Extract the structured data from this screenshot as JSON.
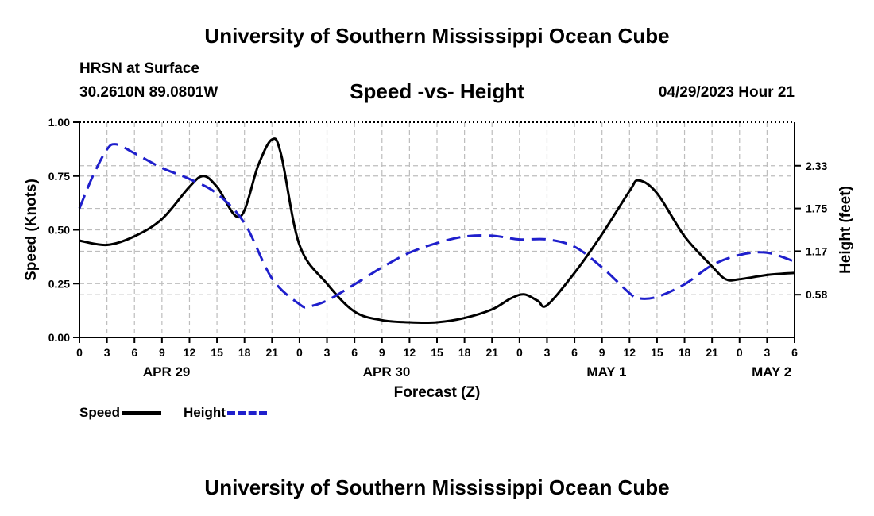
{
  "header": {
    "title": "University of Southern Mississippi Ocean Cube",
    "station": "HRSN at Surface",
    "coords": "30.2610N  89.0801W",
    "subtitle": "Speed -vs- Height",
    "datetime": "04/29/2023 Hour 21",
    "footer_title": "University of Southern Mississippi Ocean Cube"
  },
  "legend": {
    "speed_label": "Speed",
    "height_label": "Height"
  },
  "colors": {
    "speed": "#000000",
    "height": "#1f1fcc",
    "grid": "#bdbdbd"
  },
  "chart_data": {
    "type": "line",
    "title": "Speed -vs- Height",
    "xlabel": "Forecast (Z)",
    "ylabel_left": "Speed (Knots)",
    "ylabel_right": "Height (feet)",
    "x_hours": [
      0,
      78
    ],
    "x_ticks": [
      "0",
      "3",
      "6",
      "9",
      "12",
      "15",
      "18",
      "21",
      "0",
      "3",
      "6",
      "9",
      "12",
      "15",
      "18",
      "21",
      "0",
      "3",
      "6",
      "9",
      "12",
      "15",
      "18",
      "21",
      "0",
      "3",
      "6"
    ],
    "date_labels": [
      {
        "label": "APR 29",
        "hour": 9.5
      },
      {
        "label": "APR 30",
        "hour": 33.5
      },
      {
        "label": "MAY 1",
        "hour": 57.5
      },
      {
        "label": "MAY 2",
        "hour": 75.5
      }
    ],
    "ylim_left": [
      0,
      1.0
    ],
    "yticks_left": [
      "0.00",
      "0.25",
      "0.50",
      "0.75",
      "1.00"
    ],
    "ylim_right": [
      0,
      2.92
    ],
    "yticks_right": [
      "0.58",
      "1.17",
      "1.75",
      "2.33"
    ],
    "grid": true,
    "series": [
      {
        "name": "Speed",
        "axis": "left",
        "style": "solid",
        "x": [
          0,
          3,
          6,
          9,
          12,
          13.5,
          15,
          17.5,
          19.5,
          21,
          22,
          24,
          27,
          30,
          33,
          36,
          39,
          42,
          45,
          47,
          48.5,
          50,
          51,
          54,
          57,
          60,
          61,
          63,
          66,
          69,
          70.5,
          72,
          75,
          78
        ],
        "values": [
          0.45,
          0.43,
          0.47,
          0.55,
          0.7,
          0.75,
          0.7,
          0.56,
          0.8,
          0.92,
          0.85,
          0.43,
          0.25,
          0.12,
          0.08,
          0.07,
          0.07,
          0.09,
          0.13,
          0.18,
          0.2,
          0.17,
          0.15,
          0.3,
          0.48,
          0.68,
          0.73,
          0.67,
          0.47,
          0.33,
          0.27,
          0.27,
          0.29,
          0.3
        ]
      },
      {
        "name": "Height",
        "axis": "right",
        "style": "dashed",
        "x": [
          0,
          1.5,
          3,
          4,
          6,
          9,
          12,
          15,
          18,
          21,
          24,
          25,
          27,
          30,
          33,
          36,
          39,
          42,
          45,
          48,
          51,
          54,
          57,
          60,
          61,
          63,
          66,
          69,
          72,
          75,
          78
        ],
        "values": [
          1.75,
          2.2,
          2.55,
          2.62,
          2.5,
          2.3,
          2.15,
          1.95,
          1.55,
          0.8,
          0.45,
          0.42,
          0.5,
          0.72,
          0.95,
          1.15,
          1.28,
          1.37,
          1.38,
          1.33,
          1.33,
          1.23,
          0.95,
          0.6,
          0.53,
          0.55,
          0.72,
          0.98,
          1.12,
          1.15,
          1.03
        ]
      }
    ]
  }
}
